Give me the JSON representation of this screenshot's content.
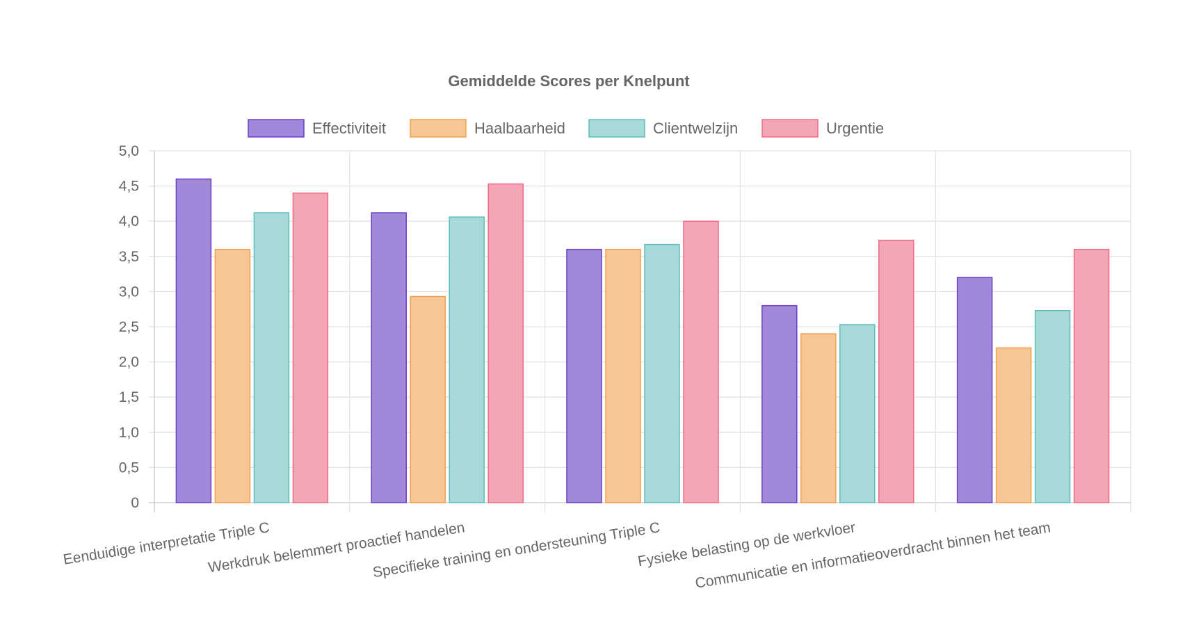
{
  "chart_data": {
    "type": "bar",
    "title": "Gemiddelde Scores per Knelpunt",
    "categories": [
      "Eenduidige interpretatie Triple C",
      "Werkdruk belemmert proactief handelen",
      "Specifieke training en ondersteuning Triple C",
      "Fysieke belasting op de werkvloer",
      "Communicatie en informatieoverdracht binnen het team"
    ],
    "series": [
      {
        "name": "Effectiviteit",
        "values": [
          4.6,
          4.12,
          3.6,
          2.8,
          3.2
        ],
        "fill": "#a288d9",
        "stroke": "#6a3fc9"
      },
      {
        "name": "Haalbaarheid",
        "values": [
          3.6,
          2.93,
          3.6,
          2.4,
          2.2
        ],
        "fill": "#f6c795",
        "stroke": "#f0a04f"
      },
      {
        "name": "Clientwelzijn",
        "values": [
          4.12,
          4.06,
          3.67,
          2.53,
          2.73
        ],
        "fill": "#a6d9d8",
        "stroke": "#5cbfbc"
      },
      {
        "name": "Urgentie",
        "values": [
          4.4,
          4.53,
          4.0,
          3.73,
          3.6
        ],
        "fill": "#f3a6b5",
        "stroke": "#ee6b86"
      }
    ],
    "ylim": [
      0,
      5
    ],
    "yticks": [
      "0",
      "0,5",
      "1,0",
      "1,5",
      "2,0",
      "2,5",
      "3,0",
      "3,5",
      "4,0",
      "4,5",
      "5,0"
    ],
    "grid": true,
    "legend_position": "top"
  }
}
